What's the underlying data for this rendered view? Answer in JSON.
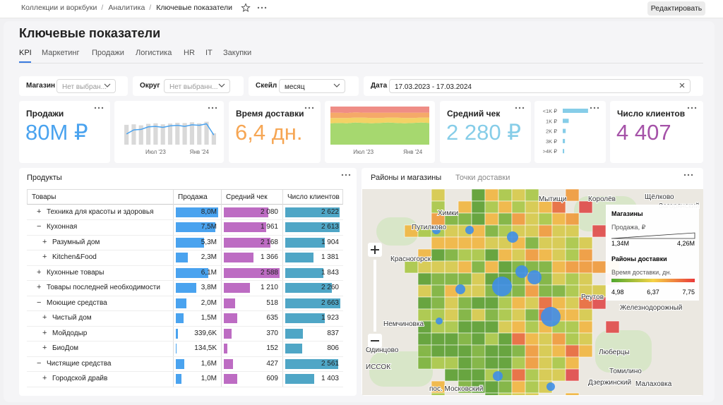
{
  "breadcrumbs": [
    "Коллекции и воркбуки",
    "Аналитика",
    "Ключевые показатели"
  ],
  "edit_button": "Редактировать",
  "title": "Ключевые показатели",
  "tabs": [
    "KPI",
    "Маркетинг",
    "Продажи",
    "Логистика",
    "HR",
    "IT",
    "Закупки"
  ],
  "active_tab": 0,
  "filters": [
    {
      "label": "Магазин",
      "value": "Нет выбран..."
    },
    {
      "label": "Округ",
      "value": "Нет выбранн..."
    },
    {
      "label": "Скейл",
      "value": "месяц"
    },
    {
      "label": "Дата",
      "value": "17.03.2023 - 17.03.2024"
    }
  ],
  "kpis": [
    {
      "title": "Продажи",
      "value": "80M ₽",
      "color": "#4aa3ef"
    },
    {
      "title": "Время доставки",
      "value": "6,4 дн.",
      "color": "#f6a654"
    },
    {
      "title": "Средний чек",
      "value": "2 280 ₽",
      "color": "#86cde8"
    },
    {
      "title": "Число клиентов",
      "value": "4 407",
      "color": "#a552a8"
    }
  ],
  "sales_trend": {
    "type": "bar-line",
    "categories": [
      null,
      null,
      null,
      null,
      "Июл '23",
      null,
      null,
      null,
      null,
      null,
      "Янв '24",
      null,
      null
    ],
    "bars": [
      78,
      80,
      76,
      82,
      84,
      80,
      83,
      86,
      85,
      88,
      84,
      90,
      45
    ],
    "line": [
      42,
      58,
      60,
      70,
      72,
      68,
      74,
      76,
      72,
      78,
      76,
      82,
      38
    ],
    "bar_color": "#d9d9d9",
    "line_color": "#4aa3ef",
    "ylim": [
      0,
      100
    ]
  },
  "delivery_mix": {
    "type": "area",
    "categories": [
      null,
      null,
      null,
      null,
      "Июл '23",
      null,
      null,
      null,
      null,
      null,
      "Янв '24",
      null,
      null
    ],
    "series": [
      {
        "color": "#a6d86f",
        "values": [
          56,
          57,
          56,
          58,
          57,
          56,
          57,
          58,
          57,
          56,
          57,
          58,
          57
        ]
      },
      {
        "color": "#f3d265",
        "values": [
          14,
          13,
          14,
          13,
          14,
          14,
          13,
          13,
          14,
          14,
          13,
          13,
          14
        ]
      },
      {
        "color": "#f5a969",
        "values": [
          14,
          14,
          13,
          14,
          13,
          14,
          14,
          13,
          13,
          14,
          14,
          13,
          13
        ]
      },
      {
        "color": "#ef8d86",
        "values": [
          16,
          16,
          17,
          15,
          16,
          16,
          16,
          16,
          16,
          16,
          16,
          16,
          16
        ]
      }
    ],
    "ylim": [
      0,
      100
    ]
  },
  "check_distribution": {
    "type": "hbar",
    "categories": [
      "<1K ₽",
      "1K ₽",
      "2K ₽",
      "3K ₽",
      ">4K ₽"
    ],
    "values": [
      34,
      8,
      4,
      3,
      2
    ],
    "color": "#86cde8",
    "xlim": [
      0,
      36
    ]
  },
  "products": {
    "title": "Продукты",
    "columns": [
      "Товары",
      "Продажа",
      "Средний чек",
      "Число клиентов"
    ],
    "colors": [
      "#4aa3ef",
      "#bd6cc3",
      "#4fa6c6"
    ],
    "rows": [
      {
        "name": "Техника для красоты и здоровья",
        "toggle": "+",
        "level": 0,
        "sales": 8000000,
        "sales_label": "8,0M",
        "check": 2080,
        "check_label": "2 080",
        "clients": 2622,
        "clients_label": "2 622"
      },
      {
        "name": "Кухонная",
        "toggle": "−",
        "level": 0,
        "sales": 7500000,
        "sales_label": "7,5M",
        "check": 1961,
        "check_label": "1 961",
        "clients": 2613,
        "clients_label": "2 613"
      },
      {
        "name": "Разумный дом",
        "toggle": "+",
        "level": 1,
        "sales": 5300000,
        "sales_label": "5,3M",
        "check": 2168,
        "check_label": "2 168",
        "clients": 1904,
        "clients_label": "1 904"
      },
      {
        "name": "Kitchen&Food",
        "toggle": "+",
        "level": 1,
        "sales": 2300000,
        "sales_label": "2,3M",
        "check": 1366,
        "check_label": "1 366",
        "clients": 1381,
        "clients_label": "1 381"
      },
      {
        "name": "Кухонные товары",
        "toggle": "+",
        "level": 0,
        "sales": 6100000,
        "sales_label": "6,1M",
        "check": 2588,
        "check_label": "2 588",
        "clients": 1843,
        "clients_label": "1 843"
      },
      {
        "name": "Товары последней необходимости",
        "toggle": "+",
        "level": 0,
        "sales": 3800000,
        "sales_label": "3,8M",
        "check": 1210,
        "check_label": "1 210",
        "clients": 2260,
        "clients_label": "2 260"
      },
      {
        "name": "Моющие средства",
        "toggle": "−",
        "level": 0,
        "sales": 2000000,
        "sales_label": "2,0M",
        "check": 518,
        "clients": 2663,
        "clients_label": "2 663"
      },
      {
        "name": "Чистый дом",
        "toggle": "+",
        "level": 1,
        "sales": 1500000,
        "sales_label": "1,5M",
        "check": 635,
        "clients": 1923,
        "clients_label": "1 923"
      },
      {
        "name": "Мойдодыр",
        "toggle": "+",
        "level": 1,
        "sales": 339600,
        "sales_label": "339,6K",
        "check": 370,
        "clients": 837
      },
      {
        "name": "БиоДом",
        "toggle": "+",
        "level": 1,
        "sales": 134500,
        "sales_label": "134,5K",
        "check": 152,
        "clients": 806
      },
      {
        "name": "Чистящие средства",
        "toggle": "−",
        "level": 0,
        "sales": 1600000,
        "sales_label": "1,6M",
        "check": 427,
        "clients": 2561,
        "clients_label": "2 561"
      },
      {
        "name": "Городской драйв",
        "toggle": "+",
        "level": 1,
        "sales": 1000000,
        "sales_label": "1,0M",
        "check": 609,
        "clients": 1403,
        "clients_label": "1 403"
      }
    ]
  },
  "map": {
    "tabs": [
      "Районы и магазины",
      "Точки доставки"
    ],
    "places": [
      "Мытищи",
      "Королёв",
      "Щёлково",
      "Загорянский",
      "Химки",
      "Путилково",
      "Красногорск",
      "Реутов",
      "Железнодорожный",
      "Немчиновка",
      "Одинцово",
      "Люберцы",
      "Томилино",
      "Малаховка",
      "Дзержинский",
      "пос. Московский",
      "ИССОК"
    ],
    "legend": {
      "stores_title": "Магазины",
      "stores_subtitle": "Продажа, ₽",
      "stores_range": [
        "1,34M",
        "4,26M"
      ],
      "districts_title": "Районы доставки",
      "districts_subtitle": "Время доставки, дн.",
      "districts_range": [
        "4,98",
        "6,37",
        "7,75"
      ],
      "colors": [
        "#4ea72e",
        "#f5d346",
        "#ea3a3a"
      ]
    }
  }
}
